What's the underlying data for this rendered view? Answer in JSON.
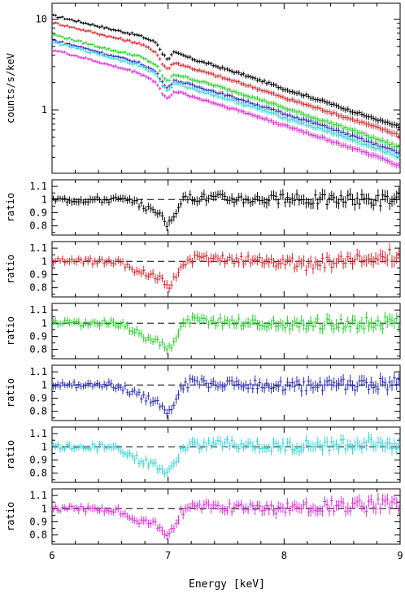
{
  "figure": {
    "xlabel": "Energy [keV]",
    "x_ticks": [
      "6",
      "7",
      "8",
      "9"
    ]
  },
  "chart_data": [
    {
      "type": "line",
      "title": "",
      "xlabel": "Energy [keV]",
      "ylabel": "counts/s/keV",
      "xlim": [
        6,
        9
      ],
      "ylim": [
        0.2,
        15
      ],
      "yscale": "log",
      "y_tick_labels": [
        "10",
        "1"
      ],
      "x_tick_labels": [
        "6",
        "7",
        "8",
        "9"
      ],
      "x": [
        6.0,
        6.25,
        6.5,
        6.75,
        6.9,
        6.95,
        7.0,
        7.05,
        7.1,
        7.25,
        7.5,
        7.75,
        8.0,
        8.25,
        8.5,
        8.75,
        9.0
      ],
      "series": [
        {
          "color": "#000000",
          "values": [
            11.0,
            9.3,
            7.8,
            6.6,
            5.5,
            4.2,
            3.6,
            4.3,
            4.1,
            3.5,
            2.8,
            2.2,
            1.7,
            1.35,
            1.05,
            0.82,
            0.64
          ]
        },
        {
          "color": "#e0242b",
          "values": [
            9.2,
            7.7,
            6.4,
            5.4,
            4.3,
            3.2,
            2.8,
            3.3,
            3.2,
            2.75,
            2.2,
            1.75,
            1.35,
            1.08,
            0.85,
            0.67,
            0.52
          ]
        },
        {
          "color": "#22d428",
          "values": [
            6.8,
            5.6,
            4.6,
            3.9,
            3.1,
            2.35,
            2.05,
            2.45,
            2.4,
            2.1,
            1.7,
            1.35,
            1.05,
            0.82,
            0.65,
            0.5,
            0.38
          ]
        },
        {
          "color": "#2929c2",
          "values": [
            5.9,
            4.9,
            4.0,
            3.3,
            2.6,
            2.0,
            1.75,
            2.1,
            2.05,
            1.8,
            1.45,
            1.15,
            0.9,
            0.72,
            0.56,
            0.43,
            0.33
          ]
        },
        {
          "color": "#2fd7d7",
          "values": [
            5.6,
            4.6,
            3.8,
            3.1,
            2.45,
            1.85,
            1.6,
            1.95,
            1.9,
            1.65,
            1.32,
            1.05,
            0.82,
            0.65,
            0.51,
            0.39,
            0.3
          ]
        },
        {
          "color": "#e228e2",
          "values": [
            4.6,
            3.8,
            3.1,
            2.55,
            2.0,
            1.5,
            1.3,
            1.6,
            1.55,
            1.35,
            1.08,
            0.86,
            0.67,
            0.53,
            0.41,
            0.32,
            0.24
          ]
        }
      ]
    },
    {
      "type": "line",
      "color": "#000000",
      "ylabel": "ratio",
      "ylim": [
        0.73,
        1.15
      ],
      "y_tick_labels": [
        "1.1",
        "1",
        "0.9",
        "0.8"
      ],
      "reference_line": 1,
      "x": [
        6.0,
        6.5,
        6.6,
        6.7,
        6.8,
        6.85,
        6.9,
        6.95,
        7.0,
        7.05,
        7.1,
        7.2,
        7.5,
        8.0,
        8.5,
        9.0
      ],
      "values": [
        1.0,
        1.0,
        1.0,
        0.97,
        0.95,
        0.92,
        0.93,
        0.85,
        0.8,
        0.88,
        0.98,
        1.02,
        1.01,
        1.0,
        1.0,
        1.0
      ]
    },
    {
      "type": "line",
      "color": "#e0242b",
      "ylabel": "ratio",
      "ylim": [
        0.73,
        1.15
      ],
      "y_tick_labels": [
        "1.1",
        "1",
        "0.9",
        "0.8"
      ],
      "reference_line": 1,
      "x": [
        6.0,
        6.5,
        6.6,
        6.7,
        6.8,
        6.85,
        6.9,
        6.95,
        7.0,
        7.05,
        7.1,
        7.2,
        7.5,
        8.0,
        8.2,
        8.5,
        9.0
      ],
      "values": [
        1.0,
        1.0,
        0.99,
        0.93,
        0.92,
        0.9,
        0.88,
        0.85,
        0.79,
        0.86,
        0.96,
        1.02,
        1.01,
        1.0,
        0.96,
        1.01,
        1.05
      ]
    },
    {
      "type": "line",
      "color": "#22d428",
      "ylabel": "ratio",
      "ylim": [
        0.73,
        1.15
      ],
      "y_tick_labels": [
        "1.1",
        "1",
        "0.9",
        "0.8"
      ],
      "reference_line": 1,
      "x": [
        6.0,
        6.5,
        6.6,
        6.7,
        6.8,
        6.85,
        6.9,
        6.95,
        7.0,
        7.05,
        7.1,
        7.2,
        7.5,
        8.0,
        8.5,
        9.0
      ],
      "values": [
        1.0,
        1.0,
        0.99,
        0.93,
        0.9,
        0.89,
        0.88,
        0.84,
        0.79,
        0.86,
        0.97,
        1.02,
        1.01,
        0.99,
        1.0,
        1.0
      ]
    },
    {
      "type": "line",
      "color": "#2929c2",
      "ylabel": "ratio",
      "ylim": [
        0.73,
        1.15
      ],
      "y_tick_labels": [
        "1.1",
        "1",
        "0.9",
        "0.8"
      ],
      "reference_line": 1,
      "x": [
        6.0,
        6.5,
        6.6,
        6.7,
        6.8,
        6.85,
        6.9,
        6.95,
        7.0,
        7.05,
        7.1,
        7.2,
        7.5,
        8.0,
        8.5,
        9.0
      ],
      "values": [
        1.0,
        1.0,
        0.99,
        0.94,
        0.91,
        0.89,
        0.87,
        0.83,
        0.8,
        0.87,
        0.97,
        1.02,
        1.01,
        0.99,
        1.0,
        1.01
      ]
    },
    {
      "type": "line",
      "color": "#2fd7d7",
      "ylabel": "ratio",
      "ylim": [
        0.73,
        1.15
      ],
      "y_tick_labels": [
        "1.1",
        "1",
        "0.9",
        "0.8"
      ],
      "reference_line": 1,
      "x": [
        6.0,
        6.5,
        6.6,
        6.7,
        6.8,
        6.85,
        6.9,
        6.95,
        7.0,
        7.05,
        7.1,
        7.2,
        7.5,
        8.0,
        8.5,
        9.0
      ],
      "values": [
        1.0,
        1.0,
        0.98,
        0.92,
        0.88,
        0.87,
        0.86,
        0.82,
        0.79,
        0.86,
        0.96,
        1.02,
        1.02,
        1.0,
        1.02,
        1.03
      ]
    },
    {
      "type": "line",
      "color": "#e228e2",
      "ylabel": "ratio",
      "ylim": [
        0.73,
        1.15
      ],
      "y_tick_labels": [
        "1.1",
        "1",
        "0.9",
        "0.8"
      ],
      "reference_line": 1,
      "x": [
        6.0,
        6.5,
        6.6,
        6.7,
        6.8,
        6.85,
        6.9,
        6.95,
        7.0,
        7.05,
        7.1,
        7.2,
        7.5,
        8.0,
        8.5,
        9.0
      ],
      "values": [
        1.0,
        1.0,
        0.98,
        0.91,
        0.89,
        0.88,
        0.87,
        0.83,
        0.8,
        0.86,
        0.96,
        1.02,
        1.01,
        1.0,
        1.02,
        1.03
      ]
    }
  ]
}
